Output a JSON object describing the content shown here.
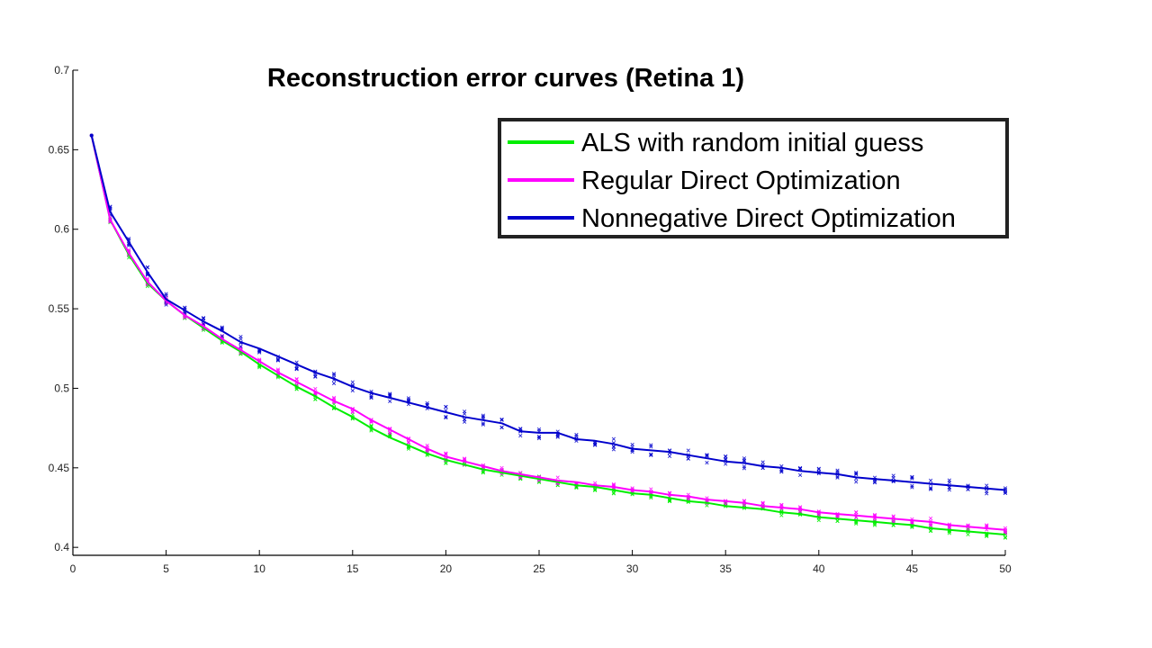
{
  "chart_data": {
    "type": "line",
    "title": "Reconstruction error curves (Retina 1)",
    "xlabel": "",
    "ylabel": "",
    "xlim": [
      0,
      50
    ],
    "ylim": [
      0.395,
      0.7
    ],
    "xticks": [
      0,
      5,
      10,
      15,
      20,
      25,
      30,
      35,
      40,
      45,
      50
    ],
    "yticks": [
      0.4,
      0.45,
      0.5,
      0.55,
      0.6,
      0.65,
      0.7
    ],
    "grid": false,
    "legend": "top-right",
    "x": [
      1,
      2,
      3,
      4,
      5,
      6,
      7,
      8,
      9,
      10,
      11,
      12,
      13,
      14,
      15,
      16,
      17,
      18,
      19,
      20,
      21,
      22,
      23,
      24,
      25,
      26,
      27,
      28,
      29,
      30,
      31,
      32,
      33,
      34,
      35,
      36,
      37,
      38,
      39,
      40,
      41,
      42,
      43,
      44,
      45,
      46,
      47,
      48,
      49,
      50
    ],
    "series": [
      {
        "name": "ALS with random initial guess",
        "color": "#00ee00",
        "values": [
          0.659,
          0.606,
          0.584,
          0.566,
          0.555,
          0.546,
          0.538,
          0.53,
          0.523,
          0.515,
          0.508,
          0.501,
          0.495,
          0.488,
          0.482,
          0.475,
          0.469,
          0.464,
          0.459,
          0.455,
          0.452,
          0.449,
          0.447,
          0.445,
          0.443,
          0.441,
          0.439,
          0.438,
          0.436,
          0.434,
          0.433,
          0.431,
          0.429,
          0.428,
          0.426,
          0.425,
          0.424,
          0.422,
          0.421,
          0.419,
          0.418,
          0.417,
          0.416,
          0.415,
          0.414,
          0.412,
          0.411,
          0.41,
          0.409,
          0.408
        ]
      },
      {
        "name": "Regular Direct Optimization",
        "color": "#ff00ff",
        "values": [
          0.659,
          0.606,
          0.585,
          0.567,
          0.555,
          0.546,
          0.539,
          0.531,
          0.524,
          0.517,
          0.51,
          0.504,
          0.498,
          0.492,
          0.487,
          0.48,
          0.474,
          0.468,
          0.462,
          0.457,
          0.454,
          0.451,
          0.448,
          0.446,
          0.444,
          0.442,
          0.441,
          0.439,
          0.438,
          0.436,
          0.435,
          0.433,
          0.432,
          0.43,
          0.429,
          0.428,
          0.426,
          0.425,
          0.424,
          0.422,
          0.421,
          0.42,
          0.419,
          0.418,
          0.417,
          0.416,
          0.414,
          0.413,
          0.412,
          0.411
        ]
      },
      {
        "name": "Nonnegative Direct Optimization",
        "color": "#0000cc",
        "values": [
          0.659,
          0.611,
          0.592,
          0.573,
          0.556,
          0.549,
          0.542,
          0.536,
          0.529,
          0.525,
          0.52,
          0.515,
          0.51,
          0.506,
          0.501,
          0.497,
          0.494,
          0.491,
          0.488,
          0.485,
          0.482,
          0.48,
          0.478,
          0.473,
          0.472,
          0.472,
          0.468,
          0.467,
          0.465,
          0.462,
          0.461,
          0.46,
          0.458,
          0.456,
          0.454,
          0.453,
          0.451,
          0.45,
          0.448,
          0.447,
          0.446,
          0.444,
          0.443,
          0.442,
          0.441,
          0.44,
          0.439,
          0.438,
          0.437,
          0.436
        ]
      }
    ]
  }
}
